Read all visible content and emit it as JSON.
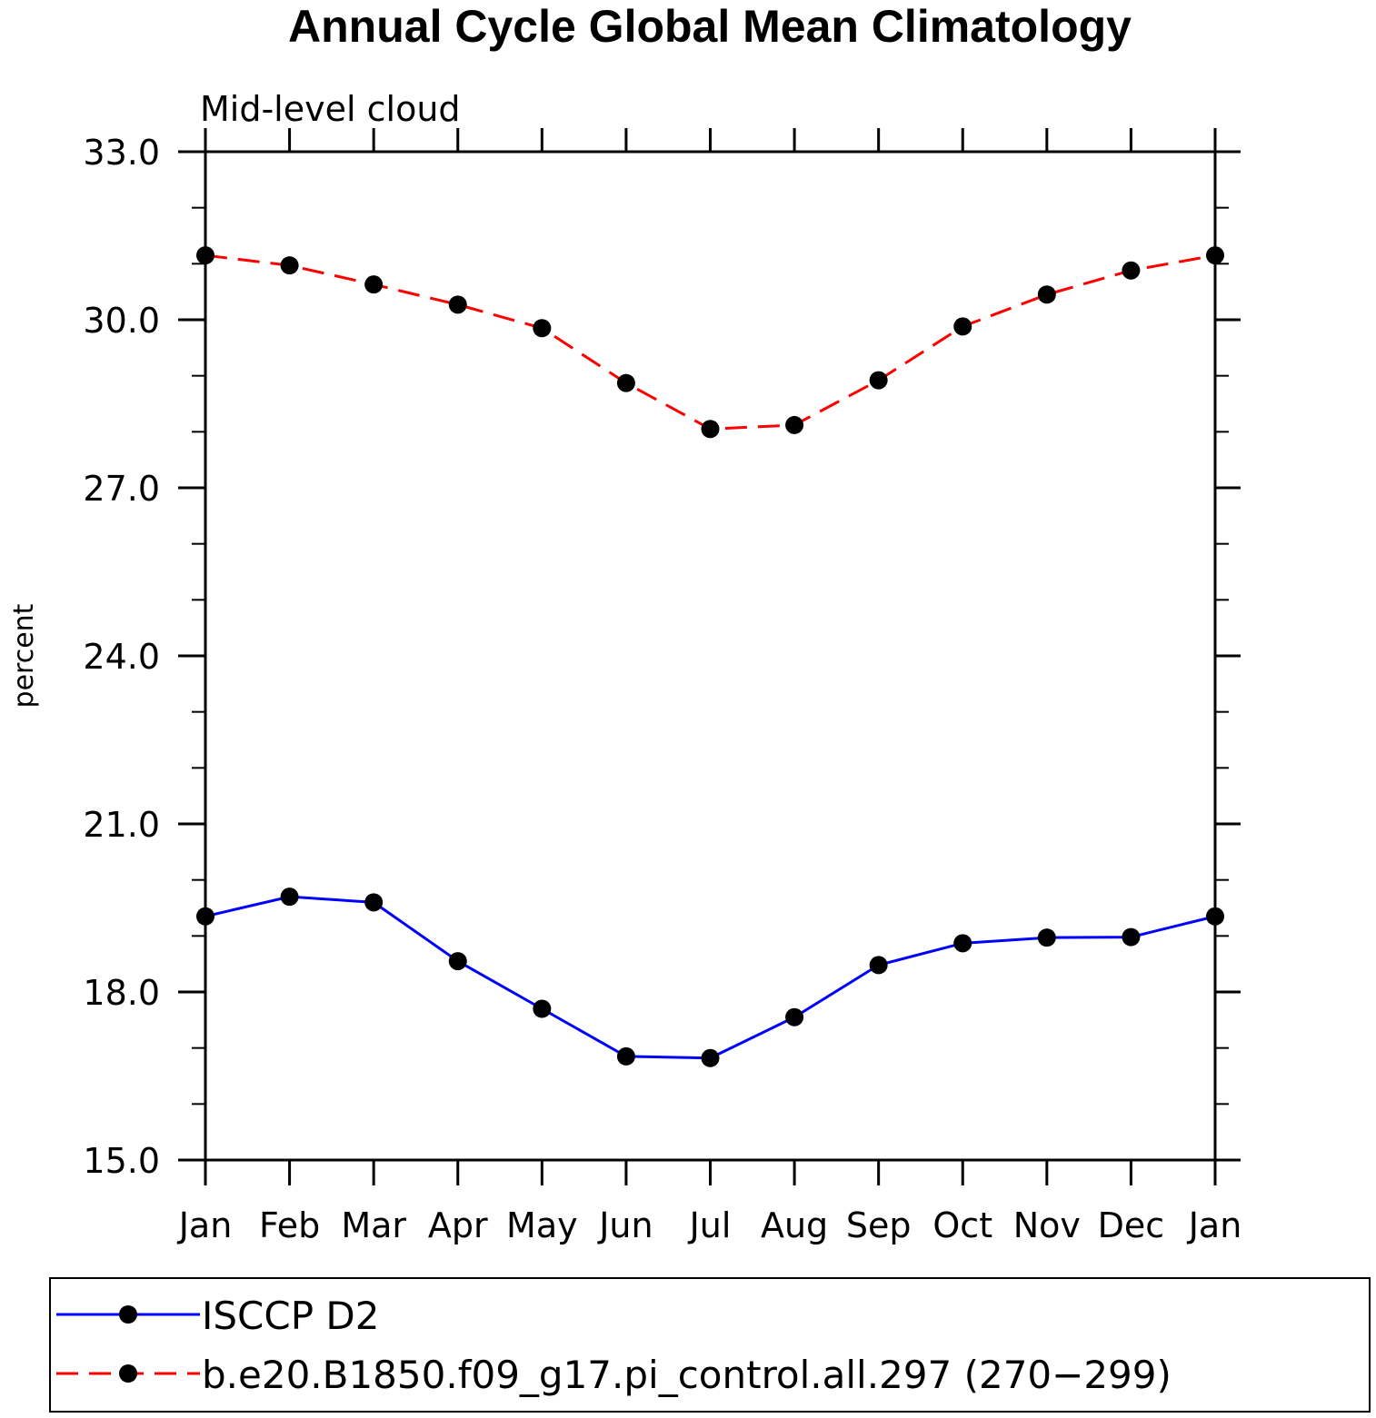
{
  "chart_data": {
    "type": "line",
    "title": "Annual Cycle Global Mean Climatology",
    "subtitle": "Mid-level cloud",
    "xlabel": "",
    "ylabel": "percent",
    "categories": [
      "Jan",
      "Feb",
      "Mar",
      "Apr",
      "May",
      "Jun",
      "Jul",
      "Aug",
      "Sep",
      "Oct",
      "Nov",
      "Dec",
      "Jan"
    ],
    "ylim": [
      15.0,
      33.0
    ],
    "yticks": [
      "15.0",
      "18.0",
      "21.0",
      "24.0",
      "27.0",
      "30.0",
      "33.0"
    ],
    "grid": false,
    "legend_position": "bottom",
    "series": [
      {
        "name": "ISCCP D2",
        "color": "#0000ff",
        "dash": "solid",
        "marker": "filled-circle",
        "values": [
          19.35,
          19.7,
          19.6,
          18.55,
          17.7,
          16.85,
          16.82,
          17.55,
          18.48,
          18.87,
          18.97,
          18.98,
          19.35
        ]
      },
      {
        "name": "b.e20.B1850.f09_g17.pi_control.all.297 (270−299)",
        "color": "#ff0000",
        "dash": "dashed",
        "marker": "filled-circle",
        "values": [
          31.15,
          30.97,
          30.63,
          30.27,
          29.85,
          28.87,
          28.05,
          28.12,
          28.92,
          29.88,
          30.45,
          30.88,
          31.15
        ]
      }
    ]
  }
}
